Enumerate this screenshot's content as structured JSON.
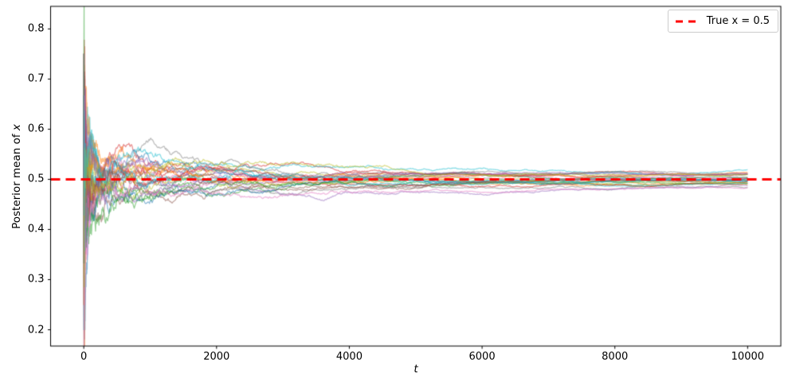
{
  "chart_data": {
    "type": "line",
    "title": "",
    "xlabel": "t",
    "ylabel": "Posterior mean of x",
    "ylabel_prefix": "Posterior mean of ",
    "ylabel_var": "x",
    "xlim": [
      -500,
      10500
    ],
    "ylim": [
      0.1675,
      0.845
    ],
    "x_ticks": [
      {
        "v": 0,
        "label": "0"
      },
      {
        "v": 2000,
        "label": "2000"
      },
      {
        "v": 4000,
        "label": "4000"
      },
      {
        "v": 6000,
        "label": "6000"
      },
      {
        "v": 8000,
        "label": "8000"
      },
      {
        "v": 10000,
        "label": "10000"
      }
    ],
    "y_ticks": [
      {
        "v": 0.2,
        "label": "0.2"
      },
      {
        "v": 0.3,
        "label": "0.3"
      },
      {
        "v": 0.4,
        "label": "0.4"
      },
      {
        "v": 0.5,
        "label": "0.5"
      },
      {
        "v": 0.6,
        "label": "0.6"
      },
      {
        "v": 0.7,
        "label": "0.7"
      },
      {
        "v": 0.8,
        "label": "0.8"
      }
    ],
    "grid": false,
    "background": "#ffffff",
    "axis_color": "#000000",
    "legend": {
      "position": "upper right",
      "entries": [
        {
          "label": "True x = 0.5",
          "color": "#ff0000",
          "style": "dashed"
        }
      ]
    },
    "reference_line": {
      "y": 0.5,
      "color": "#ff0000",
      "style": "dashed",
      "line_width": 3,
      "dash_on": 12,
      "dash_off": 7
    },
    "traces": {
      "description": "30 simulated posterior-mean trajectories (Beta-Bernoulli running posterior mean of x, true x = 0.5) converging toward 0.5",
      "count": 30,
      "true_x": 0.5,
      "t_max": 10000,
      "start_value": 0.5,
      "observed_start_range": [
        0.2,
        0.81
      ],
      "observed_end_range": [
        0.48,
        0.53
      ],
      "alpha": 0.5,
      "line_width": 1.3,
      "seed": 12,
      "iid_until": 300,
      "sticky_flip_prob": 0.25,
      "palette": [
        "#1f77b4",
        "#ff7f0e",
        "#2ca02c",
        "#d62728",
        "#9467bd",
        "#8c564b",
        "#e377c2",
        "#7f7f7f",
        "#bcbd22",
        "#17becf"
      ]
    }
  }
}
